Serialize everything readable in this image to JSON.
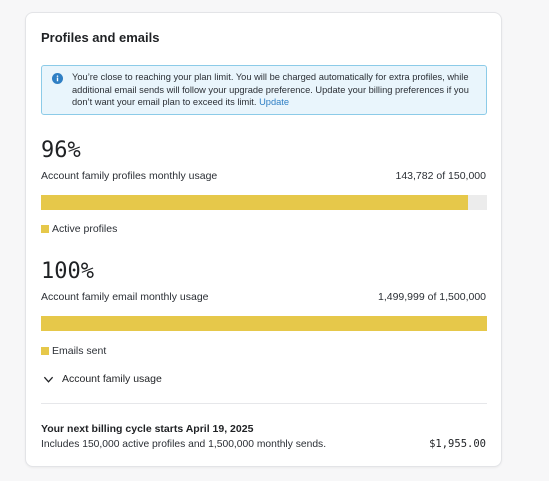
{
  "card": {
    "title": "Profiles and emails"
  },
  "alert": {
    "icon": "info-icon",
    "text": "You’re close to reaching your plan limit. You will be charged automatically for extra profiles, while additional email sends will follow your upgrade preference. Update your billing preferences if you don’t want your email plan to exceed its limit.",
    "link_label": "Update",
    "colors": {
      "background": "#e9f5fc",
      "border": "#8ccbe8",
      "icon": "#2f7fc4"
    }
  },
  "profiles_usage": {
    "percent": "96%",
    "label": "Account family profiles monthly usage",
    "count": "143,782 of 150,000",
    "fill_fraction": 0.9585,
    "legend": "Active profiles"
  },
  "email_usage": {
    "percent": "100%",
    "label": "Account family email monthly usage",
    "count": "1,499,999 of 1,500,000",
    "fill_fraction": 0.9999,
    "legend": "Emails sent"
  },
  "expander": {
    "icon": "chevron-down-icon",
    "label": "Account family usage"
  },
  "billing": {
    "title": "Your next billing cycle starts April 19, 2025",
    "description": "Includes 150,000 active profiles and 1,500,000 monthly sends.",
    "price": "$1,955.00"
  },
  "colors": {
    "bar_fill": "#e6c84a",
    "bar_track": "#ececec",
    "link": "#2f7fc4"
  }
}
